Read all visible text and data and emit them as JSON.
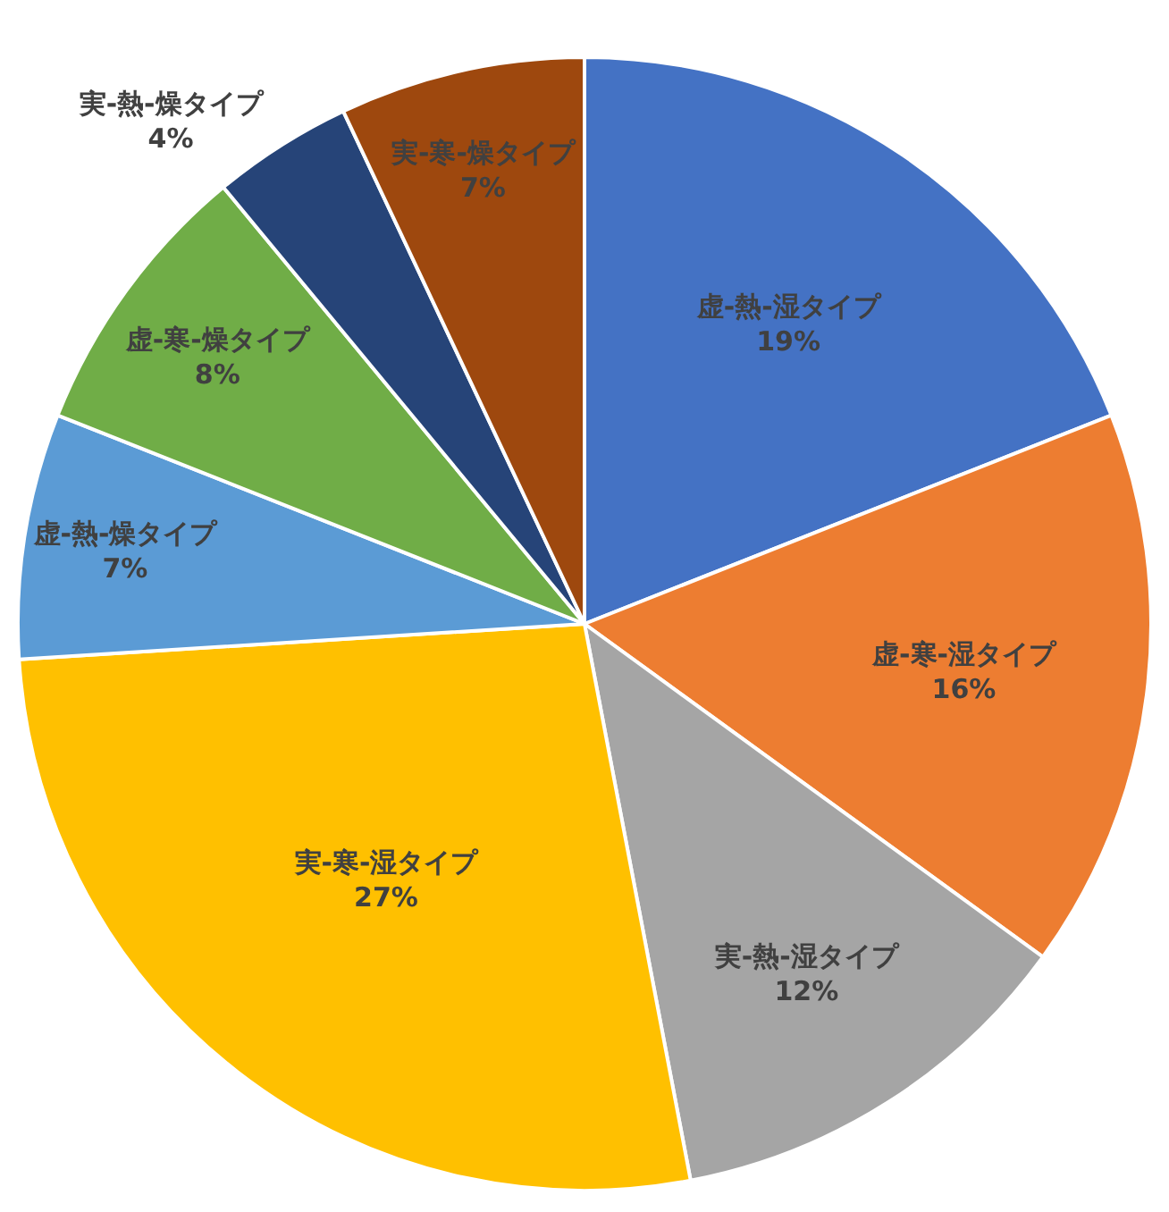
{
  "chart_data": {
    "type": "pie",
    "categories": [
      "虚-熱-湿タイプ",
      "虚-寒-湿タイプ",
      "実-熱-湿タイプ",
      "実-寒-湿タイプ",
      "虚-熱-燥タイプ",
      "虚-寒-燥タイプ",
      "実-熱-燥タイプ",
      "実-寒-燥タイプ"
    ],
    "values": [
      19,
      16,
      12,
      27,
      7,
      8,
      4,
      7
    ],
    "value_labels": [
      "19%",
      "16%",
      "12%",
      "27%",
      "7%",
      "8%",
      "4%",
      "7%"
    ],
    "colors": [
      "#4472c4",
      "#ed7d31",
      "#a5a5a5",
      "#ffc000",
      "#5b9bd5",
      "#70ad47",
      "#264478",
      "#9e480e"
    ],
    "legend": false
  }
}
